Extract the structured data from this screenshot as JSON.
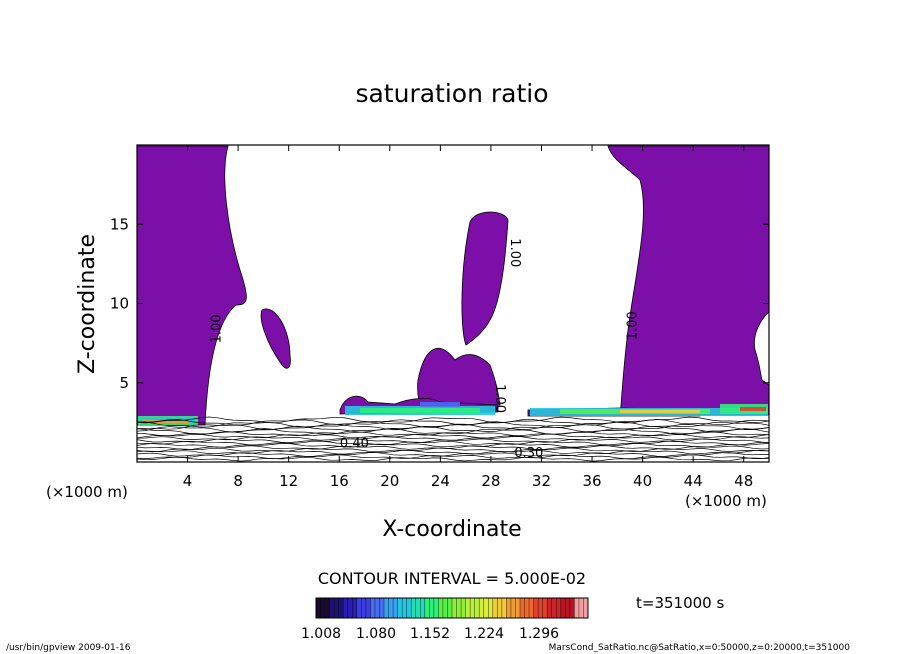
{
  "chart_data": {
    "type": "heatmap",
    "title": "saturation ratio",
    "xlabel": "X-coordinate",
    "ylabel": "Z-coordinate",
    "x_unit_left": "(×1000 m)",
    "x_unit_right": "(×1000 m)",
    "xlim": [
      0,
      50
    ],
    "ylim": [
      0,
      20
    ],
    "x_ticks": [
      4,
      8,
      12,
      16,
      20,
      24,
      28,
      32,
      36,
      40,
      44,
      48
    ],
    "y_ticks": [
      5,
      10,
      15
    ],
    "contour_interval_text": "CONTOUR INTERVAL = 5.000E-02",
    "contour_labels": [
      {
        "text": "1.00",
        "x": 6.6,
        "z": 8.4,
        "rotate": -90
      },
      {
        "text": "1.00",
        "x": 29.6,
        "z": 13.2,
        "rotate": 90
      },
      {
        "text": "1.00",
        "x": 39.5,
        "z": 8.6,
        "rotate": -90
      },
      {
        "text": "1.00",
        "x": 28.4,
        "z": 4.0,
        "rotate": 90
      },
      {
        "text": "0.40",
        "x": 17.2,
        "z": 0.9,
        "rotate": 0
      },
      {
        "text": "0.30",
        "x": 31.0,
        "z": 0.3,
        "rotate": 0
      }
    ],
    "colorbar": {
      "ticks": [
        "1.008",
        "1.080",
        "1.152",
        "1.224",
        "1.296"
      ],
      "colors": [
        "#1a0a2e",
        "#1c1270",
        "#2a1fb4",
        "#3b3ee0",
        "#4a6cf0",
        "#39a0f0",
        "#22c8e0",
        "#1fe0b4",
        "#2ef07a",
        "#58f04a",
        "#8ef03a",
        "#b8f03a",
        "#dcec3a",
        "#f0cc38",
        "#f09c34",
        "#ec6a30",
        "#e0402c",
        "#cc2428",
        "#b81424",
        "#f0a0a0"
      ]
    },
    "supersaturated_color": "#7b0fa8",
    "time_label": "t=351000 s",
    "footer_left": "/usr/bin/gpview  2009-01-16",
    "footer_right": "MarsCond_SatRatio.nc@SatRatio,x=0:50000,z=0:20000,t=351000"
  }
}
